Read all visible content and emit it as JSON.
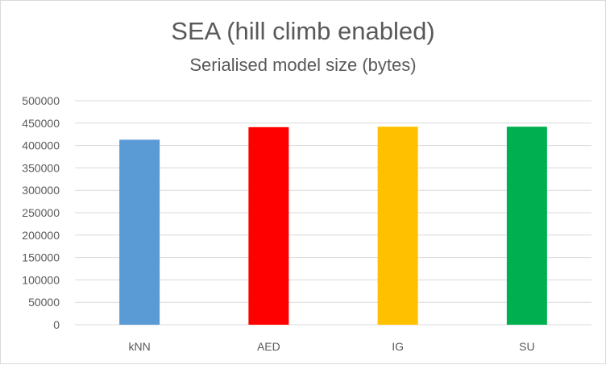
{
  "chart_data": {
    "type": "bar",
    "title": "SEA (hill climb enabled)",
    "subtitle": "Serialised model size (bytes)",
    "xlabel": "",
    "ylabel": "",
    "categories": [
      "kNN",
      "AED",
      "IG",
      "SU"
    ],
    "values": [
      413000,
      441000,
      442000,
      442000
    ],
    "colors": [
      "#5B9BD5",
      "#FF0000",
      "#FFC000",
      "#00B050"
    ],
    "ylim": [
      0,
      500000
    ],
    "yticks": [
      0,
      50000,
      100000,
      150000,
      200000,
      250000,
      300000,
      350000,
      400000,
      450000,
      500000
    ],
    "ytick_labels": [
      "0",
      "50000",
      "100000",
      "150000",
      "200000",
      "250000",
      "300000",
      "350000",
      "400000",
      "450000",
      "500000"
    ],
    "grid": true,
    "legend": "none"
  }
}
